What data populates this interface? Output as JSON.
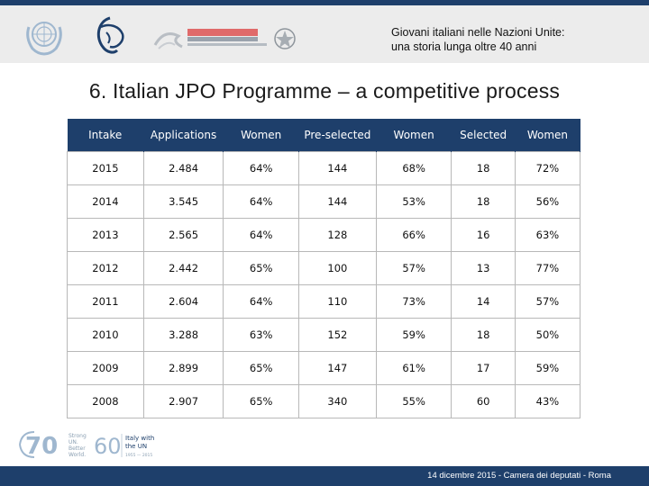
{
  "header": {
    "title_line1": "Giovani italiani nelle Nazioni Unite:",
    "title_line2": "una storia lunga oltre 40 anni"
  },
  "slide": {
    "title": "6. Italian JPO Programme – a competitive process"
  },
  "table": {
    "headers": [
      "Intake",
      "Applications",
      "Women",
      "Pre-selected",
      "Women",
      "Selected",
      "Women"
    ],
    "rows": [
      [
        "2015",
        "2.484",
        "64%",
        "144",
        "68%",
        "18",
        "72%"
      ],
      [
        "2014",
        "3.545",
        "64%",
        "144",
        "53%",
        "18",
        "56%"
      ],
      [
        "2013",
        "2.565",
        "64%",
        "128",
        "66%",
        "16",
        "63%"
      ],
      [
        "2012",
        "2.442",
        "65%",
        "100",
        "57%",
        "13",
        "77%"
      ],
      [
        "2011",
        "2.604",
        "64%",
        "110",
        "73%",
        "14",
        "57%"
      ],
      [
        "2010",
        "3.288",
        "63%",
        "152",
        "59%",
        "18",
        "50%"
      ],
      [
        "2009",
        "2.899",
        "65%",
        "147",
        "61%",
        "17",
        "59%"
      ],
      [
        "2008",
        "2.907",
        "65%",
        "340",
        "55%",
        "60",
        "43%"
      ]
    ]
  },
  "bottom_logos": {
    "seventy": "70",
    "seventy_lines": [
      "Strong",
      "UN.",
      "Better",
      "World."
    ],
    "sixty": "60",
    "sixty_lines": [
      "Italy with",
      "the UN"
    ],
    "sixty_years": "1955 — 2015"
  },
  "footer": {
    "text": "14 dicembre 2015 - Camera dei deputati - Roma"
  },
  "colors": {
    "navy": "#1e3f6b",
    "header_gray": "#ececec",
    "un_blue": "#9fb7cf"
  },
  "icons": [
    "un-emblem-icon",
    "mae-logo-icon",
    "cooperazione-logo-icon",
    "italy-emblem-icon"
  ]
}
